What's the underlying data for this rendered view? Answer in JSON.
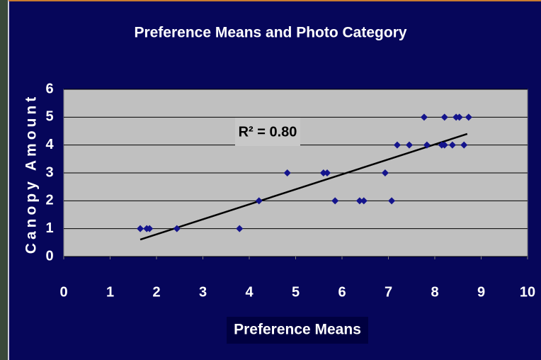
{
  "chart_data": {
    "type": "scatter",
    "title": "Preference Means and Photo Category",
    "x_label": "Preference Means",
    "y_label": "Canopy Amount",
    "annotation": "R² = 0.80",
    "x": [
      1.65,
      1.79,
      1.85,
      2.44,
      3.79,
      4.21,
      4.82,
      5.6,
      5.68,
      5.85,
      6.38,
      6.47,
      6.93,
      7.07,
      7.19,
      7.45,
      7.77,
      7.83,
      8.15,
      8.21,
      8.21,
      8.38,
      8.46,
      8.53,
      8.63,
      8.73
    ],
    "values": [
      1,
      1,
      1,
      1,
      1,
      2,
      3,
      3,
      3,
      2,
      2,
      2,
      3,
      2,
      4,
      4,
      5,
      4,
      4,
      4,
      5,
      4,
      5,
      5,
      4,
      5
    ],
    "color": "#14148c",
    "trendline": {
      "x": [
        1.65,
        8.7
      ],
      "values": [
        0.61,
        4.4
      ],
      "color": "#000000"
    },
    "xlim": [
      0,
      10
    ],
    "ylim": [
      0,
      6
    ],
    "xticks": [
      0,
      1,
      2,
      3,
      4,
      5,
      6,
      7,
      8,
      9,
      10
    ],
    "yticks": [
      0,
      1,
      2,
      3,
      4,
      5,
      6
    ],
    "grid": true
  }
}
